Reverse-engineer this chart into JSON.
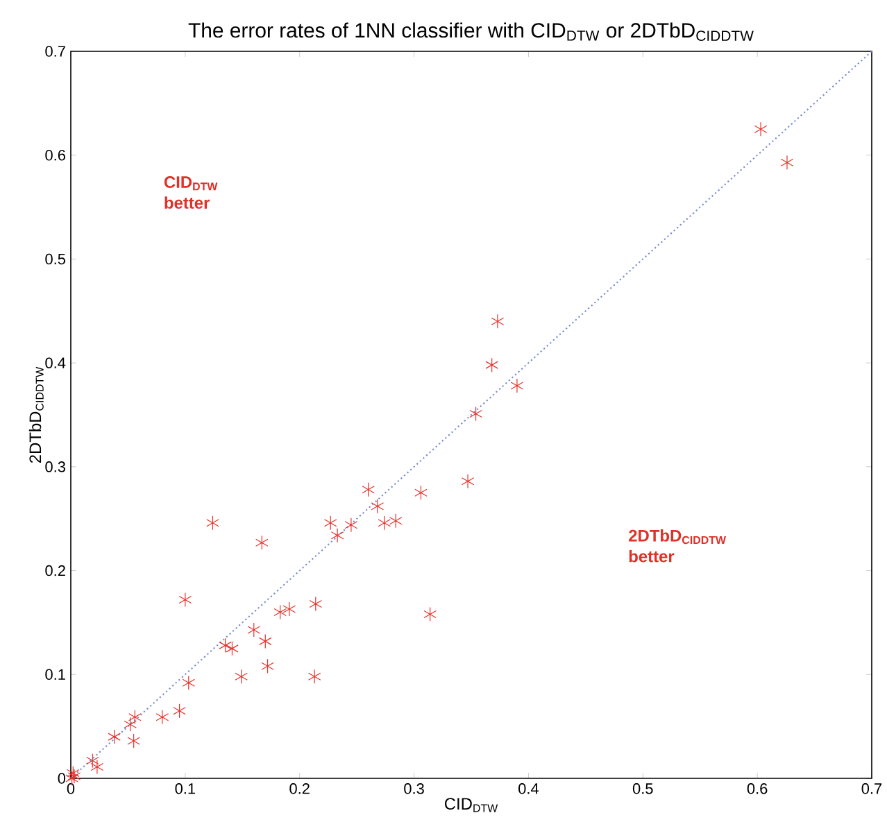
{
  "chart_data": {
    "type": "scatter",
    "title": "The error rates of 1NN classifier with CID$_{DTW}$ or 2DTbD$_{CIDDTW}$",
    "xlabel": "CID$_{DTW}$",
    "ylabel": "2DTbD$_{CIDDTW}$",
    "annotations": [
      "CID$_{DTW}$ better",
      "2DTbD$_{CIDDTW}$ better"
    ],
    "xlim": [
      0,
      0.7
    ],
    "ylim": [
      0,
      0.7
    ],
    "xticks": [
      0,
      0.1,
      0.2,
      0.3,
      0.4,
      0.5,
      0.6,
      0.7
    ],
    "yticks": [
      0,
      0.1,
      0.2,
      0.3,
      0.4,
      0.5,
      0.6,
      0.7
    ],
    "grid": false,
    "series": [
      {
        "color": "#e8312a",
        "marker": "cross",
        "x": [
          0.603,
          0.626,
          0.373,
          0.368,
          0.39,
          0.354,
          0.26,
          0.306,
          0.347,
          0.268,
          0.227,
          0.245,
          0.274,
          0.284,
          0.233,
          0.214,
          0.183,
          0.191,
          0.314,
          0.124,
          0.167,
          0.1,
          0.135,
          0.141,
          0.16,
          0.17,
          0.172,
          0.149,
          0.213,
          0.103,
          0.095,
          0.08,
          0.056,
          0.052,
          0.055,
          0.038,
          0.019,
          0.023,
          0.002,
          0.001,
          0.003
        ],
        "values": [
          0.625,
          0.593,
          0.44,
          0.398,
          0.378,
          0.351,
          0.278,
          0.275,
          0.286,
          0.262,
          0.246,
          0.244,
          0.246,
          0.248,
          0.234,
          0.168,
          0.16,
          0.163,
          0.158,
          0.246,
          0.227,
          0.172,
          0.128,
          0.125,
          0.143,
          0.132,
          0.108,
          0.098,
          0.098,
          0.092,
          0.065,
          0.059,
          0.059,
          0.052,
          0.036,
          0.04,
          0.017,
          0.011,
          0.005,
          0.0,
          0.002
        ]
      },
      {
        "type": "line",
        "color": "#7b8fd0",
        "marker": "none",
        "line_style": "dotted",
        "x": [
          0,
          0.7
        ],
        "values": [
          0,
          0.7
        ]
      }
    ]
  }
}
